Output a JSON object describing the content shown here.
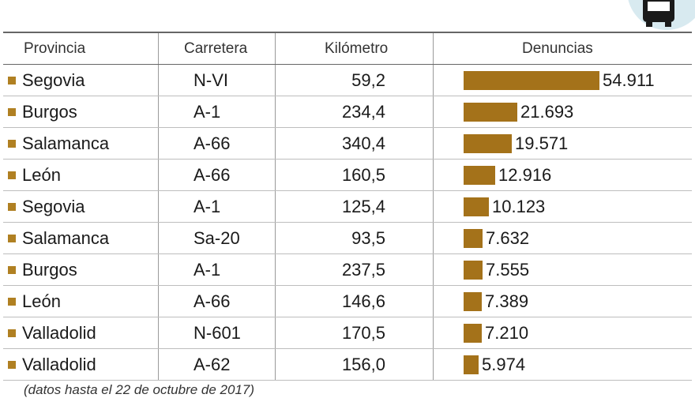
{
  "headers": {
    "provincia": "Provincia",
    "carretera": "Carretera",
    "kilometro": "Kilómetro",
    "denuncias": "Denuncias"
  },
  "rows": [
    {
      "provincia": "Segovia",
      "carretera": "N-VI",
      "kilometro": "59,2",
      "denuncias": "54.911"
    },
    {
      "provincia": "Burgos",
      "carretera": "A-1",
      "kilometro": "234,4",
      "denuncias": "21.693"
    },
    {
      "provincia": "Salamanca",
      "carretera": "A-66",
      "kilometro": "340,4",
      "denuncias": "19.571"
    },
    {
      "provincia": "León",
      "carretera": "A-66",
      "kilometro": "160,5",
      "denuncias": "12.916"
    },
    {
      "provincia": "Segovia",
      "carretera": "A-1",
      "kilometro": "125,4",
      "denuncias": "10.123"
    },
    {
      "provincia": "Salamanca",
      "carretera": "Sa-20",
      "kilometro": "93,5",
      "denuncias": "7.632"
    },
    {
      "provincia": "Burgos",
      "carretera": "A-1",
      "kilometro": "237,5",
      "denuncias": "7.555"
    },
    {
      "provincia": "León",
      "carretera": "A-66",
      "kilometro": "146,6",
      "denuncias": "7.389"
    },
    {
      "provincia": "Valladolid",
      "carretera": "N-601",
      "kilometro": "170,5",
      "denuncias": "7.210"
    },
    {
      "provincia": "Valladolid",
      "carretera": "A-62",
      "kilometro": "156,0",
      "denuncias": "5.974"
    }
  ],
  "chart_data": {
    "type": "bar",
    "orientation": "horizontal",
    "title": "",
    "xlabel": "",
    "ylabel": "Denuncias",
    "categories": [
      "Segovia N-VI",
      "Burgos A-1",
      "Salamanca A-66",
      "León A-66",
      "Segovia A-1",
      "Salamanca Sa-20",
      "Burgos A-1",
      "León A-66",
      "Valladolid N-601",
      "Valladolid A-62"
    ],
    "values": [
      54911,
      21693,
      19571,
      12916,
      10123,
      7632,
      7555,
      7389,
      7210,
      5974
    ],
    "xlim": [
      0,
      54911
    ],
    "bar_color": "#a4721a",
    "bullet_color": "#b08022"
  },
  "footnote": "(datos hasta el 22 de octubre de 2017)",
  "colors": {
    "accent": "#a4721a",
    "badge": "#d8eaf0",
    "badge_icon": "#1a1a1a",
    "badge_red": "#e04a3a"
  }
}
